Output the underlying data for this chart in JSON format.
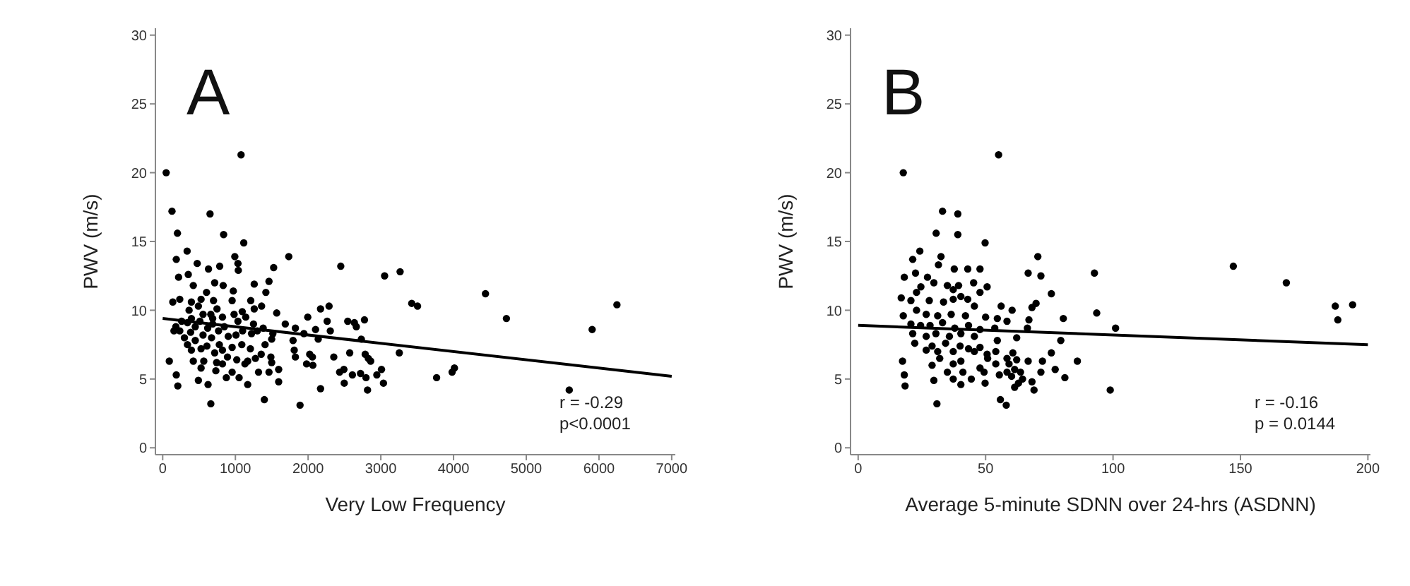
{
  "chart_data": [
    {
      "type": "scatter",
      "xlabel": "Very Low Frequency",
      "ylabel": "PWV (m/s)",
      "xlim": [
        -100,
        7050
      ],
      "xticks": [
        0,
        1000,
        2000,
        3000,
        4000,
        5000,
        6000,
        7000
      ],
      "ylim": [
        -0.5,
        30.5
      ],
      "yticks": [
        0,
        5,
        10,
        15,
        20,
        25,
        30
      ],
      "marker": "circle",
      "annotations": [
        "A",
        "r = -0.29",
        "p<0.0001"
      ],
      "series": [
        {
          "color": "#000000",
          "x": [
            48,
            1078,
            128,
            651,
            203,
            838,
            1115,
            336,
            187,
            475,
            630,
            784,
            992,
            1035,
            1040,
            1526,
            1734,
            2449,
            3052,
            3265,
            219,
            352,
            715,
            832,
            1259,
            1462,
            421,
            603,
            971,
            1419,
            235,
            139,
            395,
            528,
            699,
            955,
            1211,
            1360,
            491,
            363,
            747,
            1094,
            1259,
            1568,
            3425,
            3505,
            4439,
            6247,
            4727,
            5906,
            2171,
            2288,
            1995,
            1686,
            1825,
            2102,
            2262,
            2305,
            2545,
            2636,
            2663,
            2775,
            2732,
            1793,
            1942,
            2139,
            1809,
            1825,
            2022,
            2059,
            1979,
            2065,
            2353,
            2572,
            2785,
            2828,
            2860,
            3254,
            2433,
            2492,
            2609,
            2721,
            2796,
            2945,
            3009,
            3036,
            2497,
            2817,
            2171,
            1889,
            3767,
            3980,
            4012,
            5591,
            1398,
            662,
            91,
            187,
            208,
            491,
            624,
            565,
            421,
            528,
            742,
            822,
            891,
            1019,
            1131,
            1169,
            1275,
            1318,
            731,
            875,
            955,
            1051,
            1169,
            1462,
            1595,
            1595,
            1355,
            1488,
            1499,
            1408,
            1499,
            1515,
            181,
            155,
            261,
            341,
            448,
            384,
            299,
            448,
            555,
            619,
            688,
            768,
            848,
            672,
            779,
            902,
            1008,
            1099,
            1222,
            1302,
            1382,
            395,
            528,
            608,
            715,
            822,
            955,
            1088,
            1206,
            341,
            235,
            395,
            555,
            688,
            822,
            982,
            1142,
            662,
            512,
            1035,
            1249
          ],
          "values": [
            20.0,
            21.3,
            17.2,
            17.0,
            15.6,
            15.5,
            14.9,
            14.3,
            13.7,
            13.4,
            13.0,
            13.2,
            13.9,
            13.4,
            12.9,
            13.1,
            13.9,
            13.2,
            12.5,
            12.8,
            12.4,
            12.6,
            12.0,
            11.8,
            11.9,
            12.1,
            11.8,
            11.3,
            11.4,
            11.3,
            10.8,
            10.6,
            10.6,
            10.8,
            10.7,
            10.7,
            10.7,
            10.3,
            10.3,
            10.0,
            10.1,
            9.9,
            10.1,
            9.8,
            10.5,
            10.3,
            11.2,
            10.4,
            9.4,
            8.6,
            10.1,
            10.3,
            9.5,
            9.0,
            8.7,
            8.6,
            9.2,
            8.5,
            9.2,
            9.1,
            8.8,
            9.3,
            7.9,
            7.8,
            8.3,
            7.9,
            7.1,
            6.6,
            6.8,
            6.6,
            6.1,
            6.0,
            6.6,
            6.9,
            6.8,
            6.5,
            6.3,
            6.9,
            5.5,
            5.7,
            5.3,
            5.4,
            5.1,
            5.3,
            5.7,
            4.7,
            4.7,
            4.2,
            4.3,
            3.1,
            5.1,
            5.5,
            5.8,
            4.2,
            3.5,
            3.2,
            6.3,
            5.3,
            4.5,
            4.9,
            4.6,
            6.3,
            6.3,
            5.8,
            6.2,
            6.1,
            6.6,
            6.4,
            6.1,
            6.3,
            6.5,
            5.5,
            5.6,
            5.1,
            5.5,
            5.1,
            4.6,
            5.5,
            4.8,
            5.7,
            6.8,
            6.6,
            6.2,
            7.5,
            7.9,
            8.3,
            8.8,
            8.5,
            9.2,
            9.1,
            8.8,
            8.4,
            8.0,
            7.8,
            8.2,
            8.7,
            9.0,
            8.5,
            8.8,
            8.0,
            7.5,
            8.1,
            8.2,
            8.5,
            8.3,
            8.5,
            8.7,
            7.1,
            7.2,
            7.4,
            6.9,
            7.1,
            7.3,
            7.5,
            7.2,
            7.5,
            8.5,
            9.4,
            9.7,
            9.4,
            9.5,
            9.7,
            9.5,
            9.7,
            9.2,
            9.2,
            9.0
          ]
        },
        {
          "type": "line",
          "color": "#000000",
          "marker": "none",
          "line_style": "solid",
          "x": [
            0,
            7000
          ],
          "values": [
            9.4,
            5.2
          ]
        }
      ]
    },
    {
      "type": "scatter",
      "xlabel": "Average 5-minute SDNN over 24-hrs (ASDNN)",
      "ylabel": "PWV (m/s)",
      "xlim": [
        -3,
        201
      ],
      "xticks": [
        0,
        50,
        100,
        150,
        200
      ],
      "ylim": [
        -0.5,
        30.5
      ],
      "yticks": [
        0,
        5,
        10,
        15,
        20,
        25,
        30
      ],
      "marker": "circle",
      "annotations": [
        "B",
        "r = -0.16",
        "p = 0.0144"
      ],
      "series": [
        {
          "color": "#000000",
          "x": [
            17.7,
            55.1,
            33.1,
            39.1,
            30.6,
            39.1,
            49.8,
            24.2,
            21.4,
            32.5,
            31.5,
            37.7,
            43.0,
            47.8,
            70.5,
            66.7,
            71.7,
            92.7,
            147.2,
            168.0,
            187.2,
            194.0,
            188.2,
            18.1,
            22.5,
            27.2,
            29.7,
            35.0,
            39.4,
            45.3,
            50.6,
            47.8,
            24.6,
            22.9,
            37.3,
            40.3,
            75.8,
            16.9,
            20.7,
            27.9,
            33.5,
            37.3,
            43.0,
            45.6,
            56.1,
            60.4,
            68.2,
            69.8,
            93.6,
            101.0,
            80.5,
            17.7,
            22.9,
            26.7,
            31.2,
            36.5,
            42.1,
            50.0,
            54.6,
            58.4,
            67.0,
            20.7,
            24.5,
            28.2,
            33.1,
            37.9,
            43.3,
            47.8,
            53.6,
            66.4,
            21.4,
            26.7,
            30.5,
            35.8,
            40.3,
            45.6,
            54.6,
            62.2,
            79.5,
            22.2,
            29.0,
            34.3,
            40.0,
            43.3,
            47.8,
            26.7,
            31.2,
            37.3,
            45.6,
            50.6,
            54.0,
            60.7,
            75.8,
            50.8,
            58.4,
            62.2,
            66.7,
            86.0,
            72.3,
            17.4,
            32.0,
            37.3,
            40.3,
            29.0,
            54.0,
            59.2,
            61.4,
            63.7,
            47.8,
            49.4,
            35.0,
            41.1,
            77.3,
            71.7,
            58.4,
            18.1,
            37.3,
            44.4,
            55.4,
            60.2,
            64.5,
            81.1,
            29.7,
            40.3,
            49.8,
            62.9,
            68.2,
            18.4,
            61.4,
            69.0,
            98.9,
            55.8,
            30.9,
            58.1
          ],
          "values": [
            20.0,
            21.3,
            17.2,
            17.0,
            15.6,
            15.5,
            14.9,
            14.3,
            13.7,
            13.9,
            13.3,
            13.0,
            13.0,
            13.0,
            13.9,
            12.7,
            12.5,
            12.7,
            13.2,
            12.0,
            10.3,
            10.4,
            9.3,
            12.4,
            12.7,
            12.4,
            12.0,
            11.8,
            11.8,
            12.0,
            11.7,
            11.3,
            11.7,
            11.3,
            11.5,
            11.0,
            11.2,
            10.9,
            10.7,
            10.7,
            10.6,
            10.8,
            10.8,
            10.3,
            10.3,
            10.0,
            10.2,
            10.5,
            9.8,
            8.7,
            9.4,
            9.6,
            10.0,
            9.7,
            9.6,
            9.7,
            9.6,
            9.5,
            9.4,
            9.2,
            9.3,
            9.0,
            8.9,
            8.9,
            9.1,
            8.7,
            8.9,
            8.6,
            8.7,
            8.7,
            8.3,
            8.1,
            8.3,
            8.1,
            8.3,
            8.1,
            7.8,
            8.0,
            7.8,
            7.6,
            7.4,
            7.6,
            7.4,
            7.2,
            7.3,
            7.1,
            7.0,
            7.0,
            7.0,
            6.8,
            7.0,
            6.9,
            6.9,
            6.5,
            6.5,
            6.4,
            6.3,
            6.3,
            6.3,
            6.3,
            6.5,
            6.1,
            6.3,
            6.0,
            6.1,
            6.1,
            5.7,
            5.5,
            5.8,
            5.5,
            5.5,
            5.5,
            5.7,
            5.5,
            5.5,
            5.3,
            5.0,
            5.0,
            5.3,
            5.2,
            5.0,
            5.1,
            4.9,
            4.6,
            4.7,
            4.7,
            4.8,
            4.5,
            4.4,
            4.2,
            4.2,
            3.5,
            3.2,
            3.1
          ]
        },
        {
          "type": "line",
          "color": "#000000",
          "marker": "none",
          "line_style": "solid",
          "x": [
            0,
            200
          ],
          "values": [
            8.9,
            7.5
          ]
        }
      ]
    }
  ]
}
